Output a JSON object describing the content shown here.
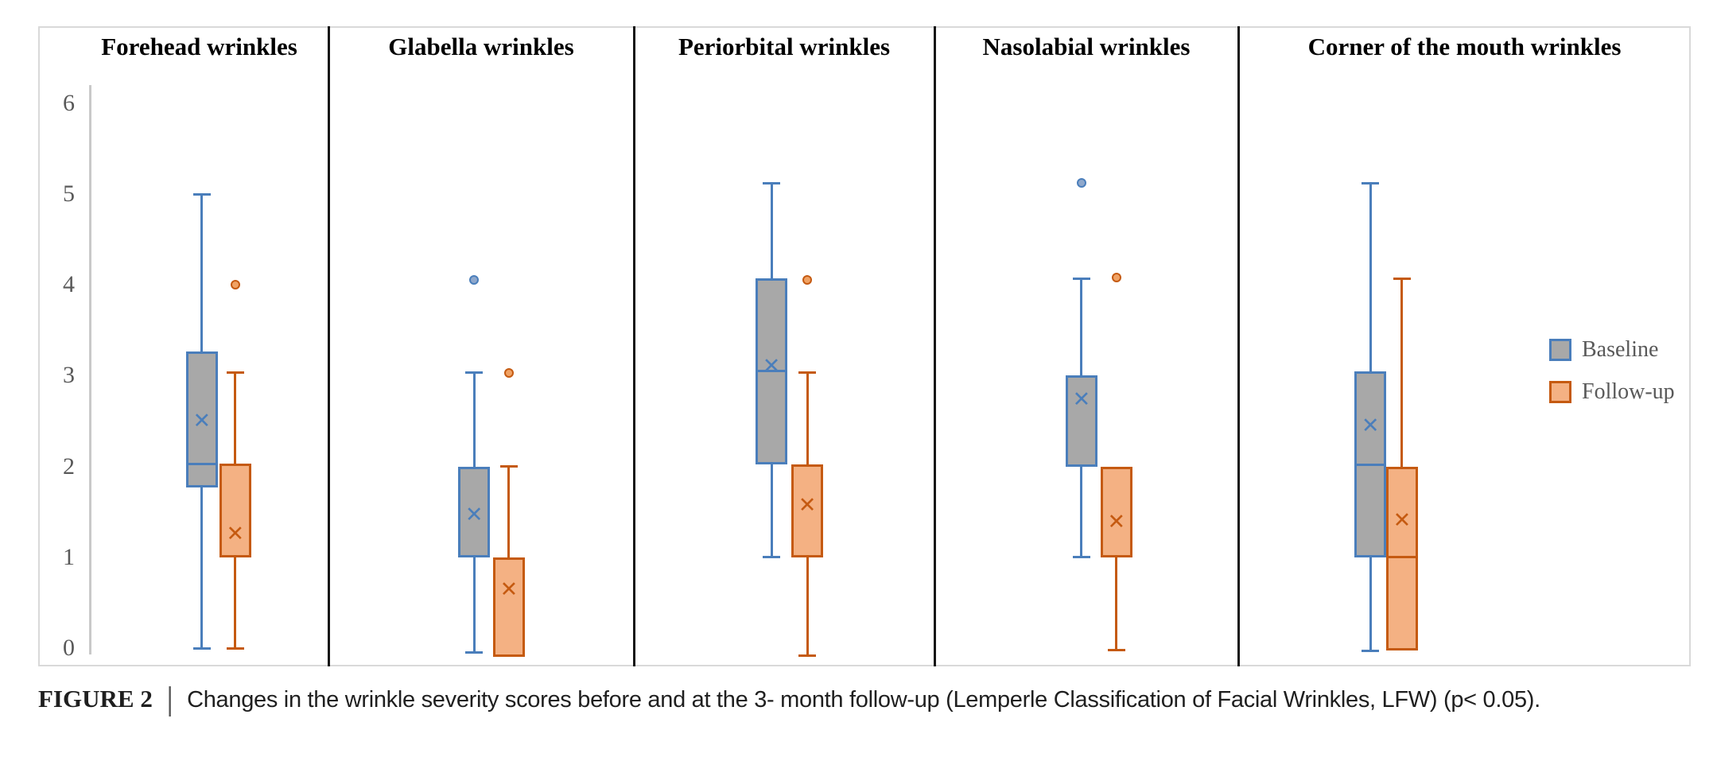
{
  "figure": {
    "caption": {
      "label": "FIGURE 2",
      "separator": "|",
      "text": "Changes in the wrinkle severity scores before and at the 3- month follow-up (Lemperle Classification of Facial Wrinkles, LFW) (p< 0.05)."
    }
  },
  "legend": {
    "position": "right",
    "items": [
      {
        "label": "Baseline"
      },
      {
        "label": "Follow-up"
      }
    ]
  },
  "colors": {
    "baseline_fill": "#a8a8a8",
    "baseline_border": "#4a7ebb",
    "baseline_outlier_fill": "#8fa8cc",
    "followup_fill": "#f4b183",
    "followup_border": "#c55a11",
    "followup_outlier_fill": "#f0a264",
    "axis_line": "#c9c9c9",
    "tick_text": "#595959",
    "panel_border": "#141414",
    "figure_border": "#d9d9d9",
    "title_text": "#000000",
    "caption_text": "#1f1f1f"
  },
  "chart_data": {
    "type": "box",
    "title": "",
    "xlabel": "",
    "ylabel": "",
    "ylim": [
      0,
      6
    ],
    "y_ticks": [
      6,
      5,
      4,
      3,
      2,
      1,
      0
    ],
    "grid": false,
    "legend_position": "right",
    "panels": [
      {
        "title": "Forehead wrinkles",
        "series": [
          {
            "name": "Baseline",
            "whisker_low": 0.0,
            "q1": 1.77,
            "median": 2.03,
            "q3": 3.27,
            "whisker_high": 5.0,
            "mean": 2.5,
            "outliers": []
          },
          {
            "name": "Follow-up",
            "whisker_low": 0.0,
            "q1": 1.0,
            "median": 1.0,
            "q3": 2.03,
            "whisker_high": 3.03,
            "mean": 1.25,
            "outliers": [
              4.0
            ]
          }
        ]
      },
      {
        "title": "Glabella wrinkles",
        "series": [
          {
            "name": "Baseline",
            "whisker_low": -0.05,
            "q1": 1.0,
            "median": 1.0,
            "q3": 2.0,
            "whisker_high": 3.03,
            "mean": 1.46,
            "outliers": [
              4.05
            ]
          },
          {
            "name": "Follow-up",
            "whisker_low": -0.1,
            "q1": -0.1,
            "median": 1.0,
            "q3": 1.0,
            "whisker_high": 2.0,
            "mean": 0.64,
            "outliers": [
              3.03
            ]
          }
        ]
      },
      {
        "title": "Periorbital wrinkles",
        "series": [
          {
            "name": "Baseline",
            "whisker_low": 1.0,
            "q1": 2.02,
            "median": 3.05,
            "q3": 4.07,
            "whisker_high": 5.12,
            "mean": 3.1,
            "outliers": []
          },
          {
            "name": "Follow-up",
            "whisker_low": -0.08,
            "q1": 1.0,
            "median": 1.0,
            "q3": 2.02,
            "whisker_high": 3.03,
            "mean": 1.57,
            "outliers": [
              4.05
            ]
          }
        ]
      },
      {
        "title": "Nasolabial wrinkles",
        "series": [
          {
            "name": "Baseline",
            "whisker_low": 1.0,
            "q1": 2.0,
            "median": 3.0,
            "q3": 3.0,
            "whisker_high": 4.07,
            "mean": 2.73,
            "outliers": [
              5.12
            ]
          },
          {
            "name": "Follow-up",
            "whisker_low": -0.02,
            "q1": 1.0,
            "median": 1.0,
            "q3": 2.0,
            "whisker_high": 2.0,
            "mean": 1.38,
            "outliers": [
              4.08
            ]
          }
        ]
      },
      {
        "title": "Corner of the mouth wrinkles",
        "series": [
          {
            "name": "Baseline",
            "whisker_low": -0.03,
            "q1": 1.0,
            "median": 2.02,
            "q3": 3.05,
            "whisker_high": 5.12,
            "mean": 2.44,
            "outliers": []
          },
          {
            "name": "Follow-up",
            "whisker_low": -0.03,
            "q1": -0.03,
            "median": 1.0,
            "q3": 2.0,
            "whisker_high": 4.07,
            "mean": 1.4,
            "outliers": []
          }
        ]
      }
    ]
  }
}
